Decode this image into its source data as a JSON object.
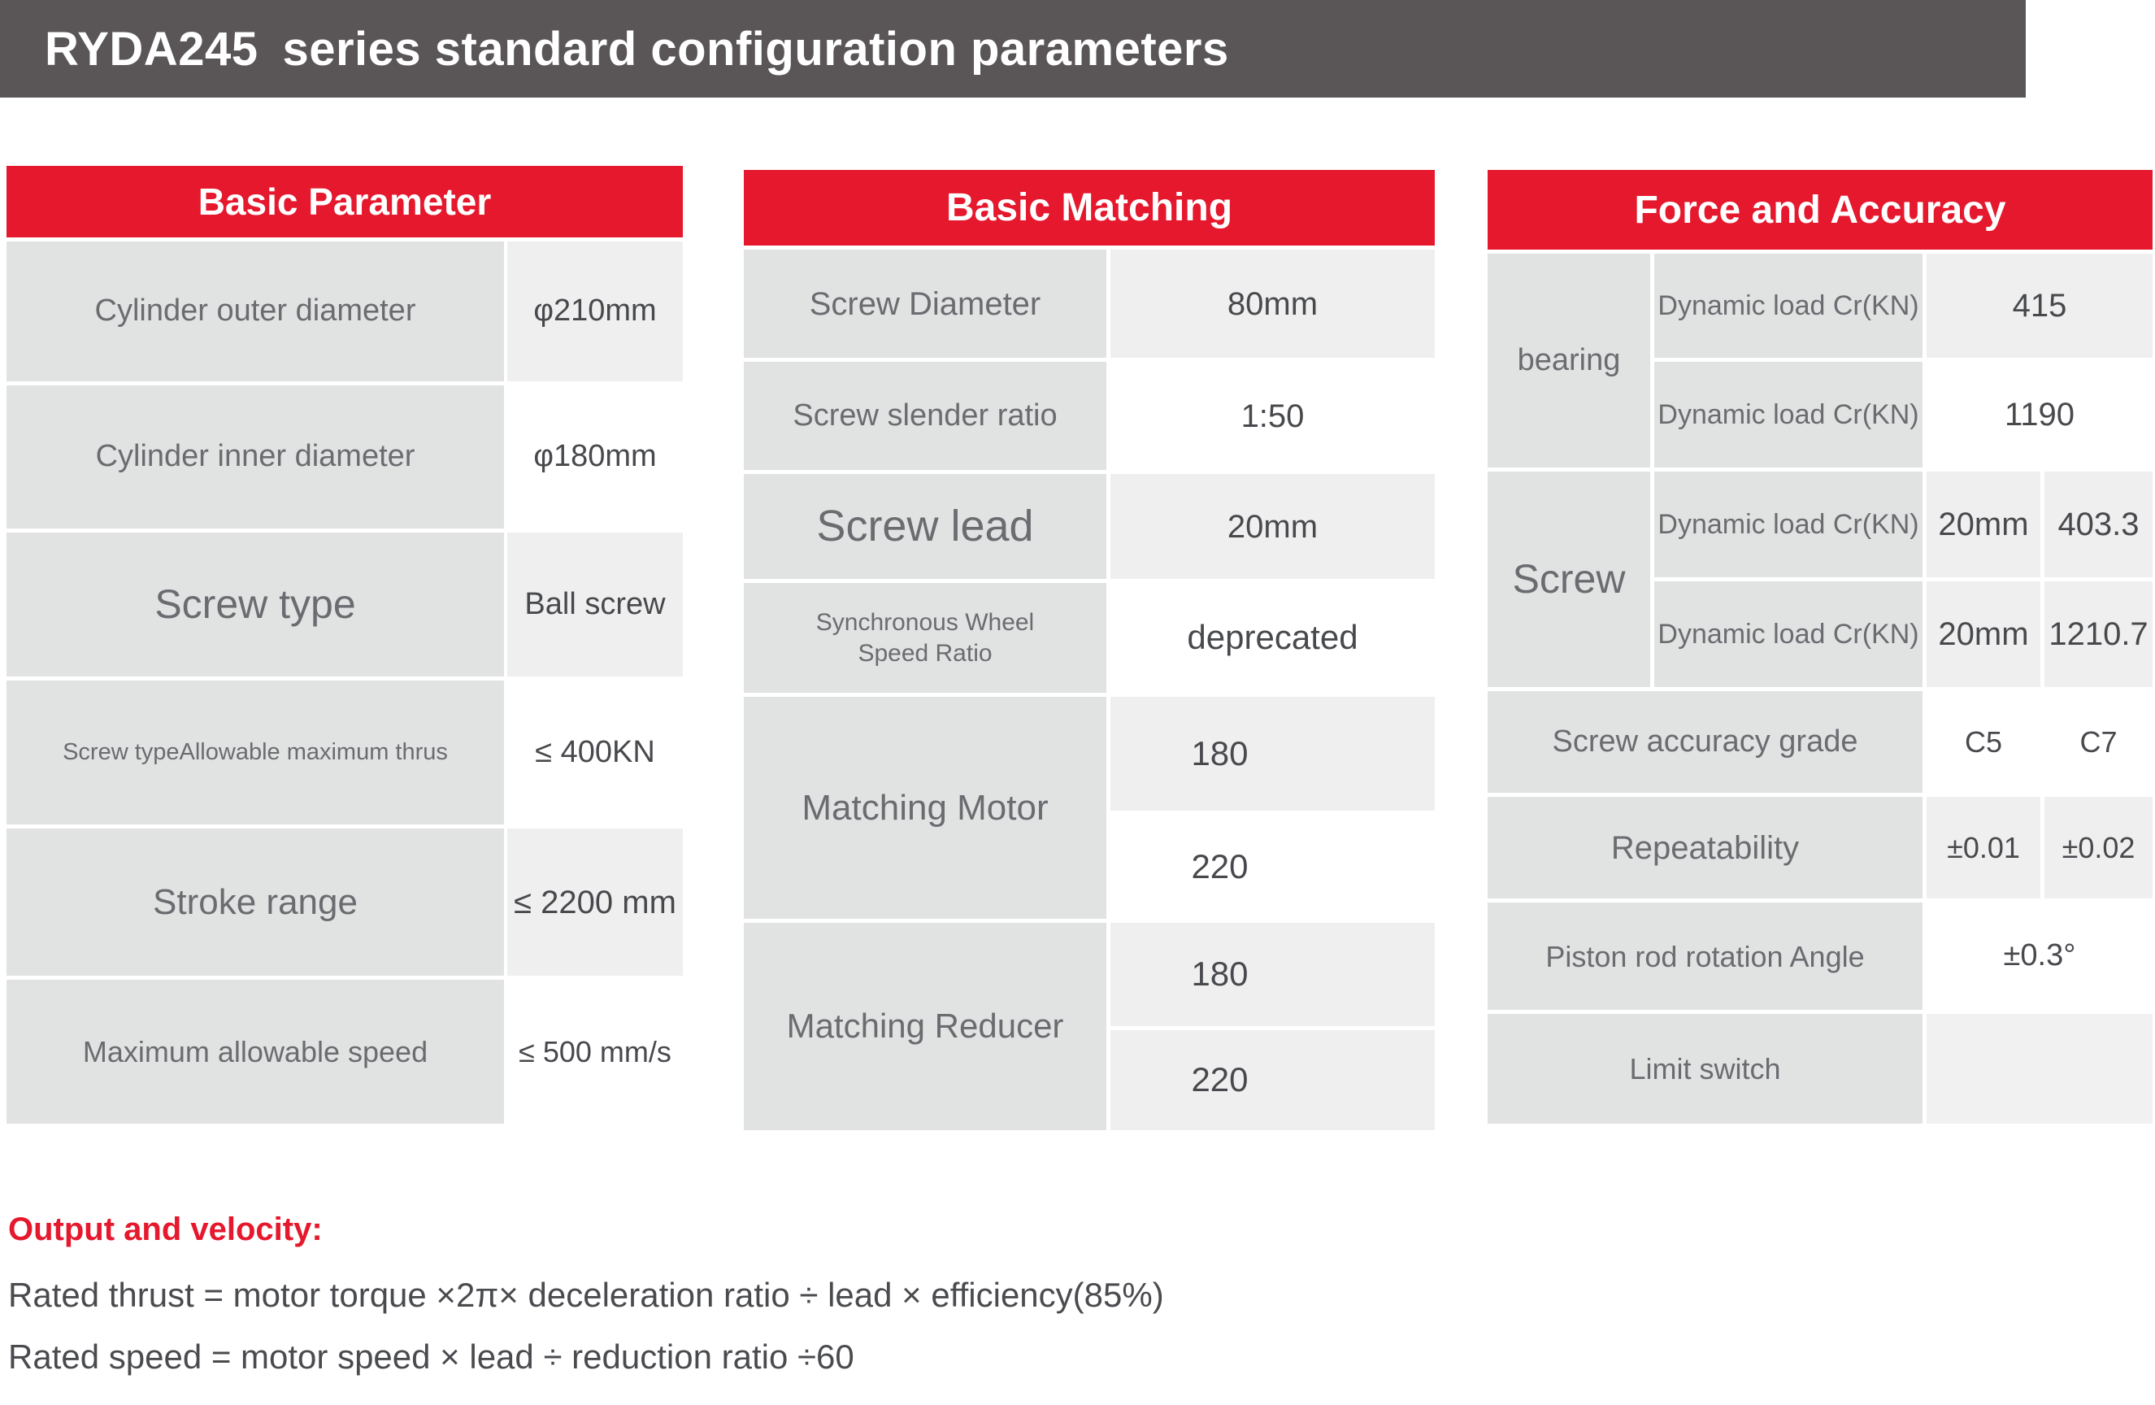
{
  "title_bar": {
    "model": "RYDA245",
    "subtitle": "series standard configuration parameters"
  },
  "colors": {
    "accent_red": "#e5182d",
    "titlebar_gray": "#5a5657",
    "label_cell_gray": "#e1e2e2",
    "value_cell_gray": "#efefef"
  },
  "tables": {
    "basic_parameter": {
      "header": "Basic Parameter",
      "rows": [
        {
          "label": "Cylinder outer diameter",
          "value": "φ210mm"
        },
        {
          "label": "Cylinder inner diameter",
          "value": "φ180mm"
        },
        {
          "label": "Screw type",
          "value": "Ball screw"
        },
        {
          "label": "Screw typeAllowable maximum thrus",
          "value": "≤ 400KN"
        },
        {
          "label": "Stroke range",
          "value": "≤ 2200 mm"
        },
        {
          "label": "Maximum allowable speed",
          "value": "≤ 500 mm/s"
        }
      ]
    },
    "basic_matching": {
      "header": "Basic Matching",
      "rows": [
        {
          "label": "Screw Diameter",
          "value": "80mm"
        },
        {
          "label": "Screw slender ratio",
          "value": "1:50"
        },
        {
          "label": "Screw lead",
          "value": "20mm"
        },
        {
          "label": "Synchronous Wheel Speed Ratio",
          "value": "deprecated"
        }
      ],
      "matching_motor": {
        "label": "Matching Motor",
        "values": [
          "180",
          "220"
        ]
      },
      "matching_reducer": {
        "label": "Matching Reducer",
        "values": [
          "180",
          "220"
        ]
      }
    },
    "force_accuracy": {
      "header": "Force and Accuracy",
      "bearing": {
        "label": "bearing",
        "rows": [
          {
            "label": "Dynamic load Cr(KN)",
            "value": "415"
          },
          {
            "label": "Dynamic load Cr(KN)",
            "value": "1190"
          }
        ]
      },
      "screw": {
        "label": "Screw",
        "rows": [
          {
            "label": "Dynamic load Cr(KN)",
            "lead": "20mm",
            "value": "403.3"
          },
          {
            "label": "Dynamic load Cr(KN)",
            "lead": "20mm",
            "value": "1210.7"
          }
        ]
      },
      "accuracy_grade": {
        "label": "Screw accuracy grade",
        "values": [
          "C5",
          "C7"
        ]
      },
      "repeatability": {
        "label": "Repeatability",
        "values": [
          "±0.01",
          "±0.02"
        ]
      },
      "piston_rotation": {
        "label": "Piston rod rotation Angle",
        "value": "±0.3°"
      },
      "limit_switch": {
        "label": "Limit switch",
        "value": ""
      }
    }
  },
  "notes": {
    "heading": "Output and velocity:",
    "lines": [
      "Rated thrust = motor torque ×2π× deceleration ratio ÷ lead × efficiency(85%)",
      "Rated speed = motor speed × lead ÷ reduction ratio ÷60"
    ]
  }
}
